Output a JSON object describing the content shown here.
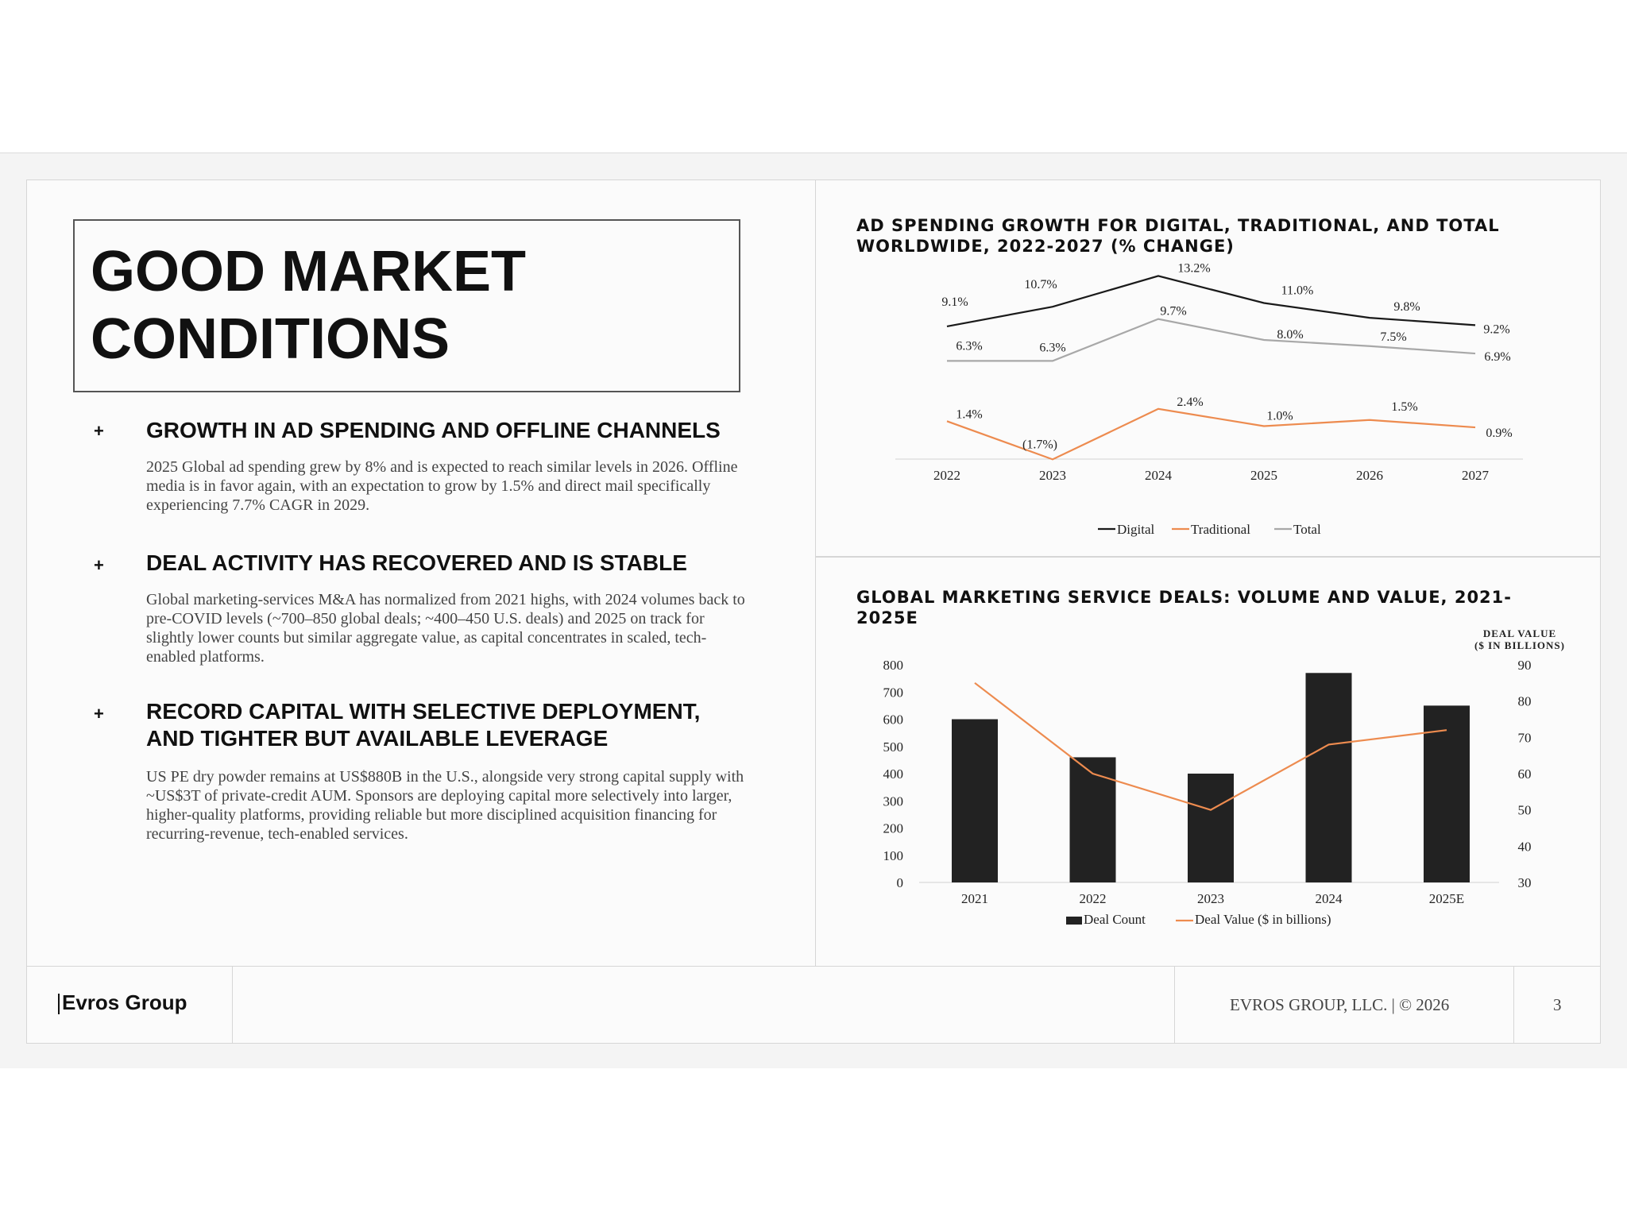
{
  "title": "GOOD MARKET CONDITIONS",
  "bullets": [
    {
      "marker": "+",
      "heading": "GROWTH IN AD SPENDING AND OFFLINE CHANNELS",
      "body": "2025 Global ad spending grew by 8% and is expected to reach similar levels in 2026. Offline media is in favor again, with an expectation to grow by 1.5% and direct mail specifically experiencing 7.7% CAGR in 2029."
    },
    {
      "marker": "+",
      "heading": "DEAL ACTIVITY HAS RECOVERED AND IS STABLE",
      "body": "Global marketing-services M&A has normalized from 2021 highs, with 2024 volumes back to pre-COVID levels (~700–850 global deals; ~400–450 U.S. deals) and 2025 on track for slightly lower counts but similar aggregate value, as capital concentrates in scaled, tech-enabled platforms."
    },
    {
      "marker": "+",
      "heading": "RECORD CAPITAL WITH SELECTIVE DEPLOYMENT, AND TIGHTER BUT AVAILABLE LEVERAGE",
      "body": "US PE dry powder remains at US$880B in the U.S., alongside very strong capital supply with ~US$3T of private-credit AUM. Sponsors are deploying capital more selectively into larger, higher-quality platforms, providing reliable but more disciplined acquisition financing for recurring-revenue, tech-enabled services."
    }
  ],
  "chart_data": [
    {
      "type": "line",
      "title": "AD SPENDING GROWTH FOR DIGITAL, TRADITIONAL, AND TOTAL WORLDWIDE, 2022-2027 (% CHANGE)",
      "categories": [
        "2022",
        "2023",
        "2024",
        "2025",
        "2026",
        "2027"
      ],
      "series": [
        {
          "name": "Digital",
          "color": "#1a1a1a",
          "values": [
            9.1,
            10.7,
            13.2,
            11.0,
            9.8,
            9.2
          ],
          "labels": [
            "9.1%",
            "10.7%",
            "13.2%",
            "11.0%",
            "9.8%",
            "9.2%"
          ]
        },
        {
          "name": "Traditional",
          "color": "#ed8b4f",
          "values": [
            1.4,
            -1.7,
            2.4,
            1.0,
            1.5,
            0.9
          ],
          "labels": [
            "1.4%",
            "(1.7%)",
            "2.4%",
            "1.0%",
            "1.5%",
            "0.9%"
          ]
        },
        {
          "name": "Total",
          "color": "#a8a8a8",
          "values": [
            6.3,
            6.3,
            9.7,
            8.0,
            7.5,
            6.9
          ],
          "labels": [
            "6.3%",
            "6.3%",
            "9.7%",
            "8.0%",
            "7.5%",
            "6.9%"
          ]
        }
      ],
      "grid": false,
      "legend": "bottom"
    },
    {
      "type": "bar",
      "title": "GLOBAL MARKETING SERVICE DEALS: VOLUME AND VALUE, 2021-2025E",
      "categories": [
        "2021",
        "2022",
        "2023",
        "2024",
        "2025E"
      ],
      "series": [
        {
          "name": "Deal Count",
          "type": "bar",
          "axis": "left",
          "color": "#222222",
          "values": [
            600,
            460,
            400,
            770,
            650
          ]
        },
        {
          "name": "Deal Value ($ in billions)",
          "type": "line",
          "axis": "right",
          "color": "#ed8b4f",
          "values": [
            85,
            60,
            50,
            68,
            72
          ]
        }
      ],
      "ylim": [
        0,
        800
      ],
      "yticks": [
        "0",
        "100",
        "200",
        "300",
        "400",
        "500",
        "600",
        "700",
        "800"
      ],
      "y2lim": [
        30,
        90
      ],
      "y2ticks": [
        "30",
        "40",
        "50",
        "60",
        "70",
        "80",
        "90"
      ],
      "y2label": "DEAL VALUE\n($ IN BILLIONS)",
      "y2label_lines": [
        "DEAL VALUE",
        "($ IN BILLIONS)"
      ],
      "grid": false,
      "legend": "bottom"
    }
  ],
  "footer": {
    "logo": "Evros Group",
    "copyright": "EVROS GROUP, LLC. | © 2026",
    "page_number": "3"
  }
}
